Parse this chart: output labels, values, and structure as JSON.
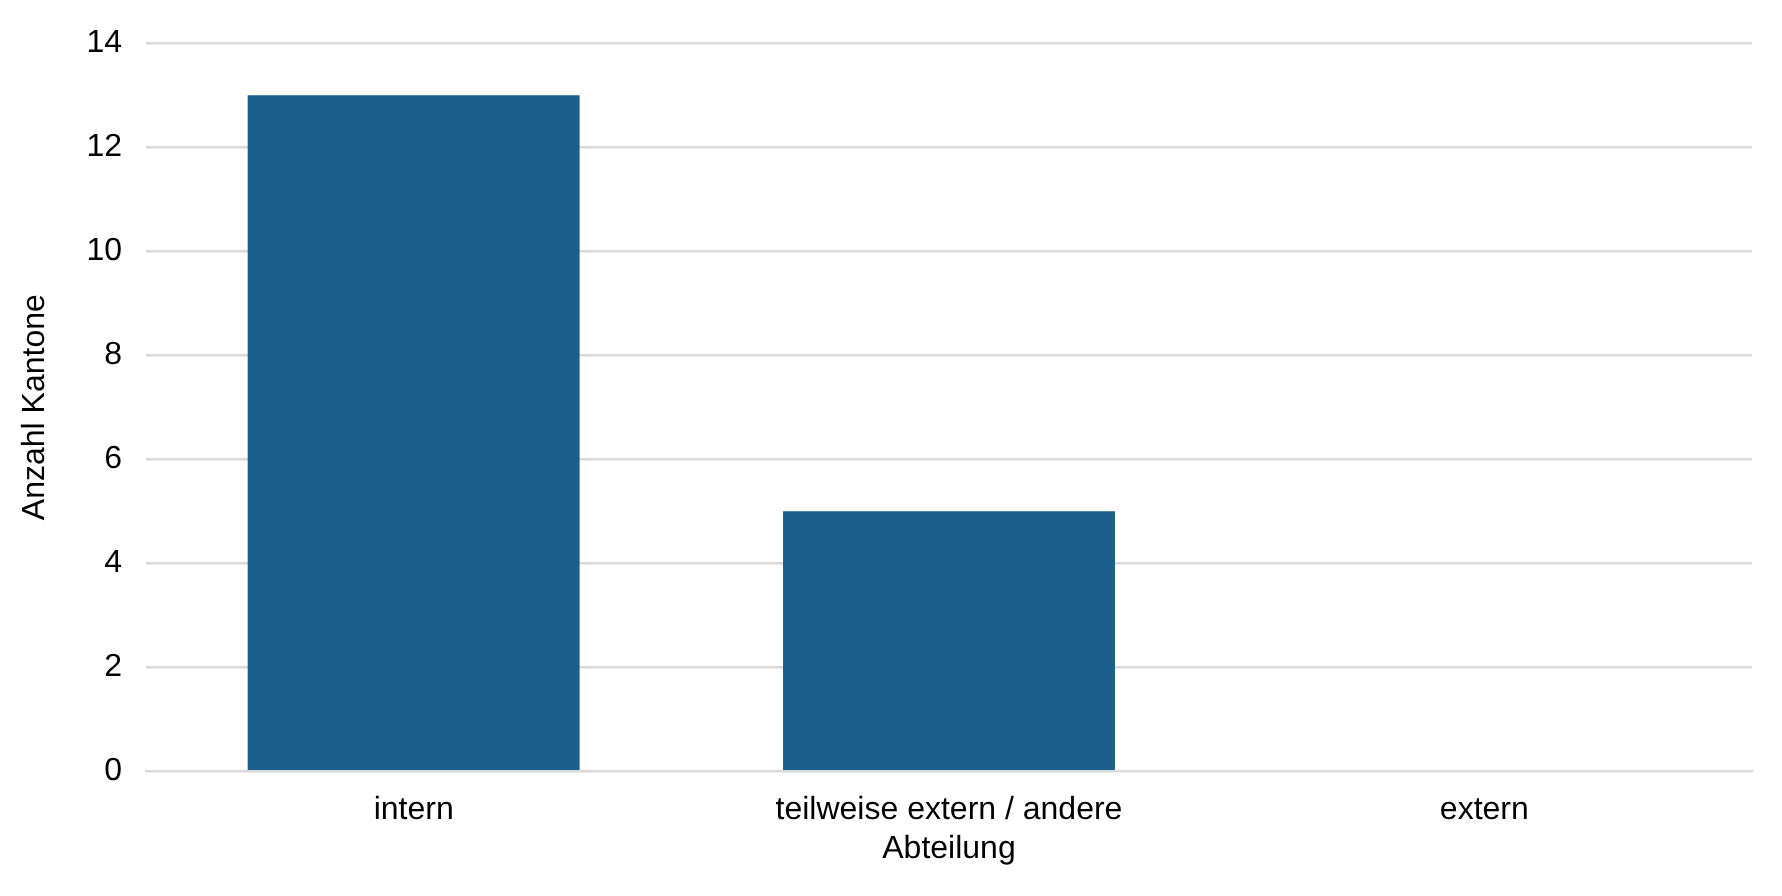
{
  "chart_data": {
    "type": "bar",
    "ylabel": "Anzahl Kantone",
    "categories": [
      "intern",
      "teilweise extern / andere Abteilung",
      "extern"
    ],
    "values": [
      13,
      5,
      0
    ],
    "color": "#1a5e8c",
    "ylim": [
      0,
      14
    ],
    "yticks": [
      0,
      2,
      4,
      6,
      8,
      10,
      12,
      14
    ],
    "grid": "y",
    "legend": false
  }
}
